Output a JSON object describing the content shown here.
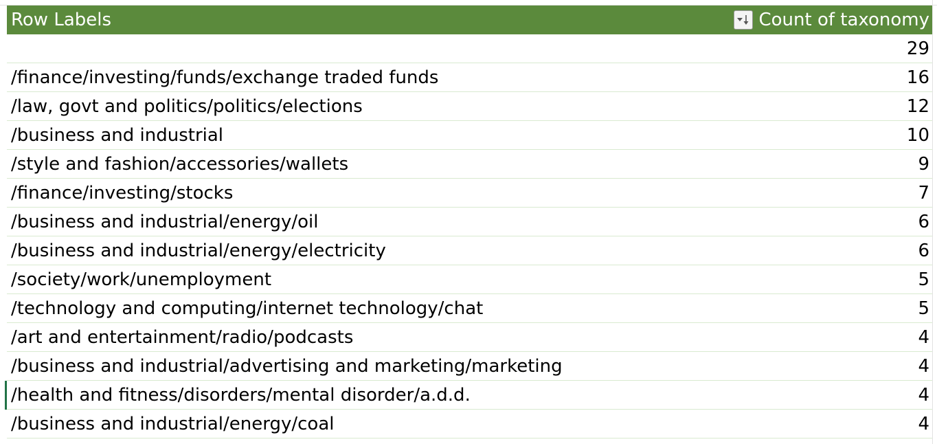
{
  "pivot": {
    "header": {
      "row_labels": "Row Labels",
      "value_label": "Count of taxonomy",
      "filter_icon": "sort-filter-icon"
    },
    "rows": [
      {
        "label": "",
        "count": "29"
      },
      {
        "label": "/finance/investing/funds/exchange traded funds",
        "count": "16"
      },
      {
        "label": "/law, govt and politics/politics/elections",
        "count": "12"
      },
      {
        "label": "/business and industrial",
        "count": "10"
      },
      {
        "label": "/style and fashion/accessories/wallets",
        "count": "9"
      },
      {
        "label": "/finance/investing/stocks",
        "count": "7"
      },
      {
        "label": "/business and industrial/energy/oil",
        "count": "6"
      },
      {
        "label": "/business and industrial/energy/electricity",
        "count": "6"
      },
      {
        "label": "/society/work/unemployment",
        "count": "5"
      },
      {
        "label": "/technology and computing/internet technology/chat",
        "count": "5"
      },
      {
        "label": "/art and entertainment/radio/podcasts",
        "count": "4"
      },
      {
        "label": "/business and industrial/advertising and marketing/marketing",
        "count": "4"
      },
      {
        "label": "/health and fitness/disorders/mental disorder/a.d.d.",
        "count": "4"
      },
      {
        "label": "/business and industrial/energy/coal",
        "count": "4"
      }
    ]
  },
  "colors": {
    "header_bg": "#5b8a3c",
    "header_text": "#ffffff",
    "row_divider": "#d9ead0",
    "active_cell_marker": "#217346"
  }
}
